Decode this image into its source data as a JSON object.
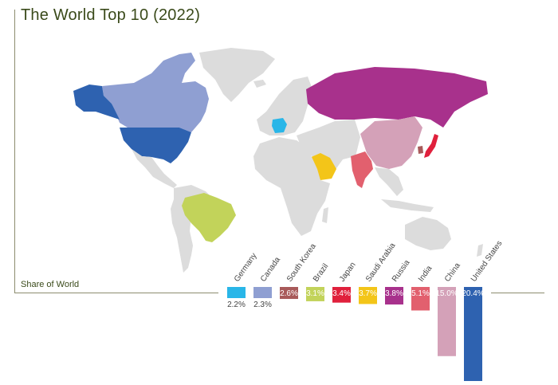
{
  "title": "The World Top 10 (2022)",
  "share_label": "Share of World",
  "colors": {
    "land": "#dcdcdc",
    "Germany": "#29b6e8",
    "Canada": "#8f9fd2",
    "South Korea": "#a85a5a",
    "Brazil": "#c2d35a",
    "Japan": "#e0203c",
    "Saudi Arabia": "#f3c519",
    "Russia": "#a8318c",
    "India": "#e2606e",
    "China": "#d4a1b8",
    "United States": "#2e62b0"
  },
  "chart_data": {
    "type": "bar",
    "categories": [
      "Germany",
      "Canada",
      "South Korea",
      "Brazil",
      "Japan",
      "Saudi Arabia",
      "Russia",
      "India",
      "China",
      "United States"
    ],
    "values": [
      2.2,
      2.3,
      2.6,
      3.1,
      3.4,
      3.7,
      3.8,
      5.1,
      15.0,
      20.4
    ],
    "value_labels": [
      "2.2%",
      "2.3%",
      "2.6%",
      "3.1%",
      "3.4%",
      "3.7%",
      "3.8%",
      "5.1%",
      "15.0%",
      "20.4%"
    ],
    "ylabel": "Share of World",
    "ylim": [
      0,
      20.4
    ]
  }
}
